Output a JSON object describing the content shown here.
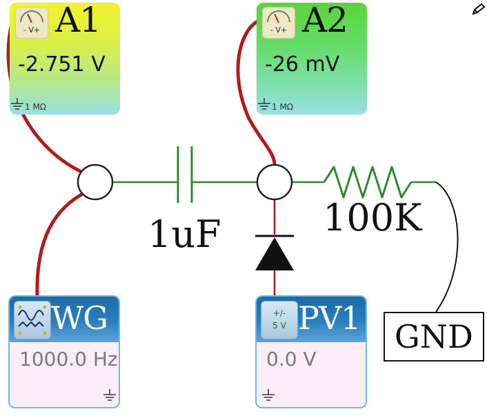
{
  "meters": [
    {
      "id": "A1",
      "value": "-2.751 V",
      "gauge_label": "- V+",
      "impedance": "1 MΩ"
    },
    {
      "id": "A2",
      "value": "-26 mV",
      "gauge_label": "- V+",
      "impedance": "1 MΩ"
    }
  ],
  "sources": [
    {
      "id": "WG",
      "value": "1000.0 Hz"
    },
    {
      "id": "PV1",
      "value": "0.0 V",
      "icon_top": "+/-",
      "icon_bottom": "5 V"
    }
  ],
  "components": {
    "capacitor_label": "1uF",
    "resistor_label": "100K",
    "ground_label": "GND"
  },
  "colors": {
    "wire_probe": "#b01c1c",
    "wire_green": "#2a8a2a",
    "wire_red_thin": "#a01818",
    "wire_black": "#111111",
    "header_blue": "#1e6aa8"
  }
}
